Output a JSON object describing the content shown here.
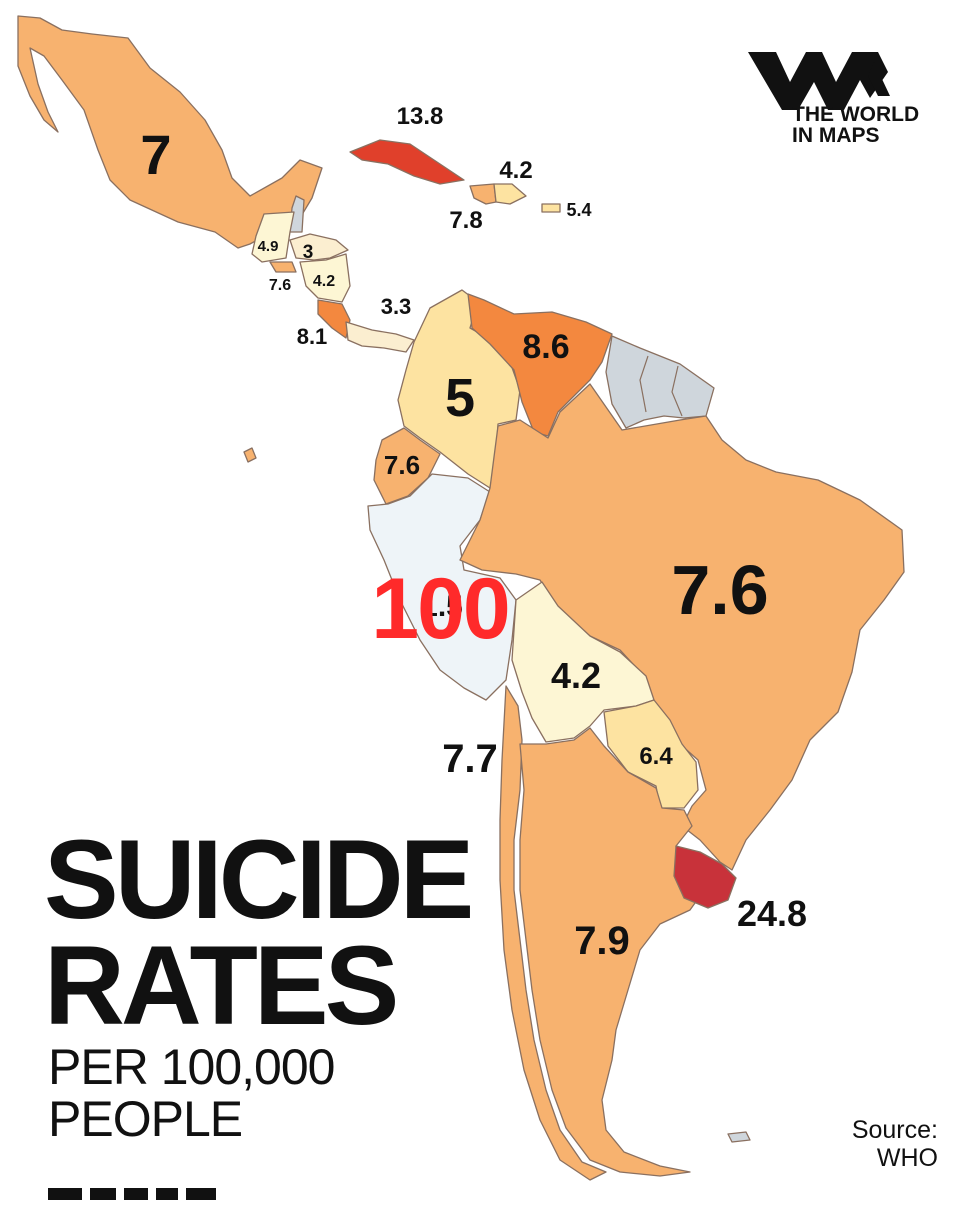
{
  "title_line1": "SUICIDE",
  "title_line2": "RATES",
  "subtitle_line1": "PER 100,000",
  "subtitle_line2": "PEOPLE",
  "source_line1": "Source:",
  "source_line2": "WHO",
  "logo": {
    "line1": "THE WORLD",
    "line2": "IN MAPS",
    "mark": "WM"
  },
  "overlay_number": "100",
  "colors": {
    "rate_2_5": "#fdf6d4",
    "rate_3_5": "#fbeed0",
    "rate_5_7": "#fde3a1",
    "rate_7_8": "#f7b26f",
    "rate_8_9": "#f3883f",
    "rate_13": "#e0402b",
    "rate_24": "#c8323a",
    "no_data": "#cfd6dc",
    "peru_fill": "#eef4f8"
  },
  "regions": [
    {
      "name": "Mexico",
      "value": "7"
    },
    {
      "name": "Cuba",
      "value": "13.8"
    },
    {
      "name": "Haiti",
      "value": "7.8"
    },
    {
      "name": "Dominican Republic",
      "value": "4.2"
    },
    {
      "name": "Puerto Rico",
      "value": "5.4"
    },
    {
      "name": "Guatemala",
      "value": "4.9"
    },
    {
      "name": "Honduras",
      "value": "3"
    },
    {
      "name": "El Salvador",
      "value": "7.6"
    },
    {
      "name": "Nicaragua",
      "value": "4.2"
    },
    {
      "name": "Costa Rica",
      "value": "8.1"
    },
    {
      "name": "Panama",
      "value": "3.3"
    },
    {
      "name": "Colombia",
      "value": "5"
    },
    {
      "name": "Venezuela",
      "value": "8.6"
    },
    {
      "name": "Ecuador",
      "value": "7.6"
    },
    {
      "name": "Peru",
      "value": "1.5"
    },
    {
      "name": "Brazil",
      "value": "7.6"
    },
    {
      "name": "Bolivia",
      "value": "4.2"
    },
    {
      "name": "Paraguay",
      "value": "6.4"
    },
    {
      "name": "Chile",
      "value": "7.7"
    },
    {
      "name": "Argentina",
      "value": "7.9"
    },
    {
      "name": "Uruguay",
      "value": "24.8"
    }
  ]
}
